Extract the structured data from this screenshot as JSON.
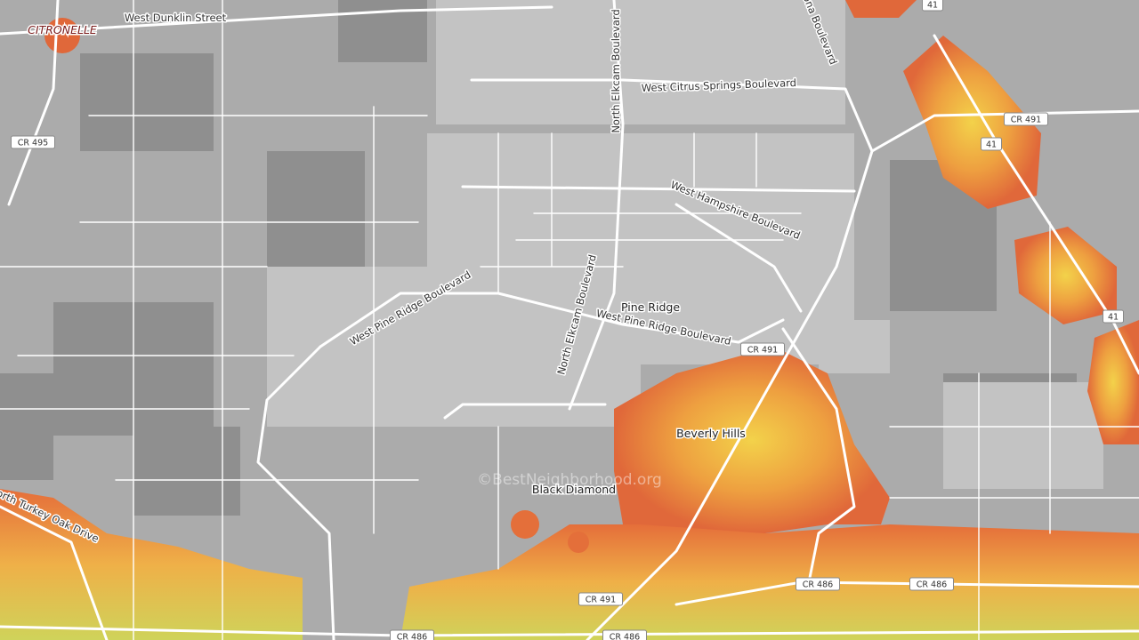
{
  "places": [
    "CITRONELLE",
    "Pine Ridge",
    "Beverly Hills",
    "Black Diamond"
  ],
  "roads": [
    "West Dunklin Street",
    "North Elkcam Boulevard",
    "West Citrus Springs Boulevard",
    "ona Boulevard",
    "West Hampshire Boulevard",
    "West Pine Ridge Boulevard",
    "North Elkcam Boulevard",
    "West Pine Ridge Boulevard",
    "North Turkey Oak Drive"
  ],
  "shields": [
    "CR 495",
    "CR 491",
    "41",
    "41",
    "41",
    "CR 491",
    "CR 491",
    "CR 486",
    "CR 486",
    "CR 486",
    "CR 486"
  ],
  "watermark": "©BestNeighborhood.org"
}
